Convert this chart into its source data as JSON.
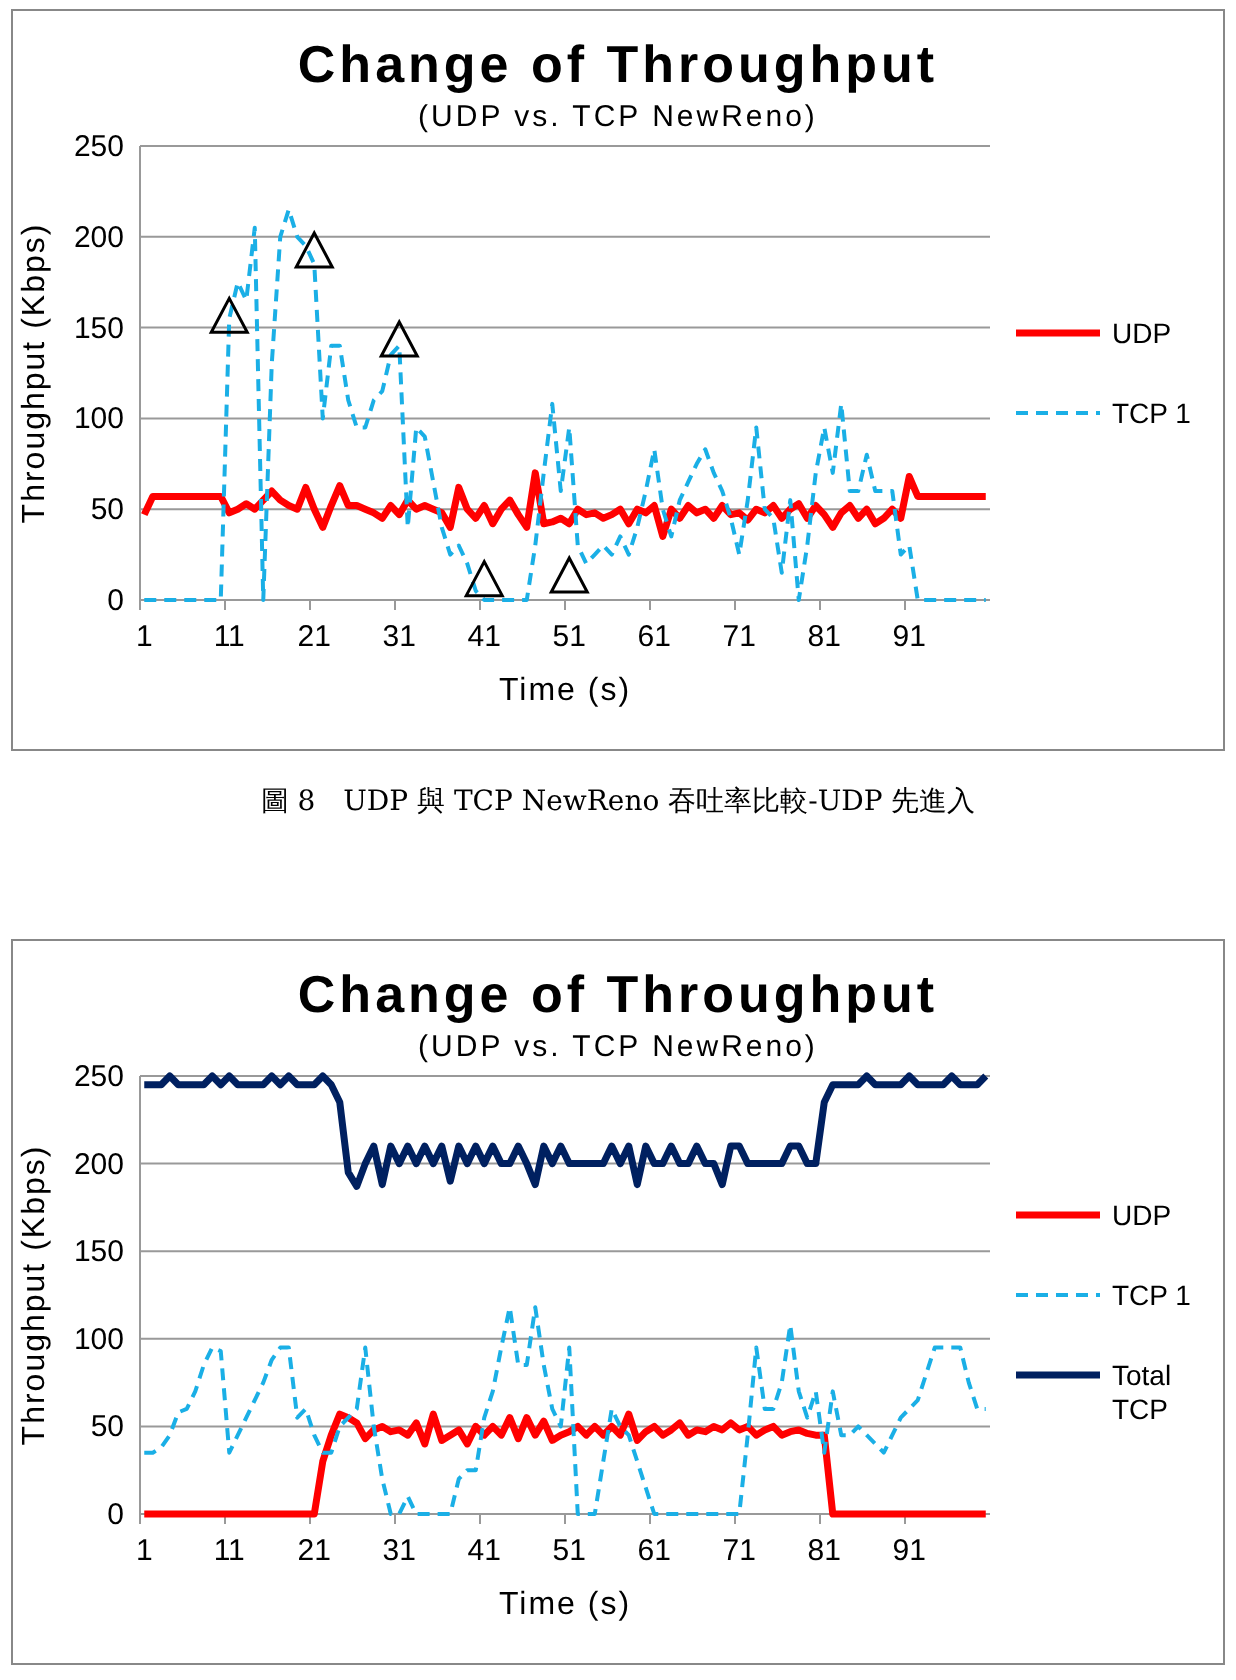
{
  "chart_data": [
    {
      "type": "line",
      "title": "Change of Throughput",
      "subtitle": "(UDP vs. TCP NewReno)",
      "xlabel": "Time (s)",
      "ylabel": "Throughput (Kbps)",
      "categories": [
        "1",
        null,
        null,
        null,
        null,
        null,
        null,
        null,
        null,
        null,
        "11",
        null,
        null,
        null,
        null,
        null,
        null,
        null,
        null,
        null,
        "21",
        null,
        null,
        null,
        null,
        null,
        null,
        null,
        null,
        null,
        "31",
        null,
        null,
        null,
        null,
        null,
        null,
        null,
        null,
        null,
        "41",
        null,
        null,
        null,
        null,
        null,
        null,
        null,
        null,
        null,
        "51",
        null,
        null,
        null,
        null,
        null,
        null,
        null,
        null,
        null,
        "61",
        null,
        null,
        null,
        null,
        null,
        null,
        null,
        null,
        null,
        "71",
        null,
        null,
        null,
        null,
        null,
        null,
        null,
        null,
        null,
        "81",
        null,
        null,
        null,
        null,
        null,
        null,
        null,
        null,
        null,
        "91",
        null,
        null,
        null,
        null,
        null,
        null,
        null,
        null,
        null
      ],
      "ylim": [
        0,
        250
      ],
      "yticks": [
        0,
        50,
        100,
        150,
        200,
        250
      ],
      "grid": "y",
      "legend": "right",
      "marker": "none",
      "series": [
        {
          "name": "UDP",
          "color": "#ff0000",
          "line_style": "solid",
          "values": [
            47,
            57,
            57,
            57,
            57,
            57,
            57,
            57,
            57,
            57,
            48,
            50,
            53,
            50,
            55,
            60,
            55,
            52,
            50,
            62,
            50,
            40,
            52,
            63,
            52,
            52,
            50,
            48,
            45,
            52,
            47,
            55,
            50,
            52,
            50,
            48,
            40,
            62,
            50,
            45,
            52,
            42,
            50,
            55,
            47,
            40,
            70,
            42,
            43,
            45,
            42,
            50,
            47,
            48,
            45,
            47,
            50,
            42,
            50,
            48,
            52,
            35,
            50,
            45,
            52,
            48,
            50,
            45,
            52,
            47,
            48,
            44,
            50,
            48,
            52,
            45,
            50,
            53,
            45,
            52,
            47,
            40,
            48,
            52,
            45,
            50,
            42,
            45,
            50,
            45,
            68,
            57,
            57,
            57,
            57,
            57,
            57,
            57,
            57,
            57
          ]
        },
        {
          "name": "TCP 1",
          "color": "#1aafe6",
          "line_style": "dashed",
          "values": [
            0,
            0,
            0,
            0,
            0,
            0,
            0,
            0,
            0,
            0,
            155,
            175,
            165,
            205,
            0,
            130,
            200,
            215,
            200,
            195,
            185,
            100,
            140,
            140,
            110,
            95,
            95,
            110,
            115,
            135,
            140,
            40,
            95,
            90,
            65,
            40,
            25,
            30,
            20,
            5,
            0,
            0,
            0,
            0,
            0,
            0,
            30,
            70,
            108,
            60,
            95,
            30,
            20,
            25,
            30,
            25,
            35,
            25,
            40,
            60,
            83,
            50,
            35,
            55,
            65,
            75,
            83,
            70,
            60,
            45,
            25,
            55,
            95,
            50,
            45,
            15,
            55,
            0,
            30,
            70,
            95,
            70,
            108,
            60,
            60,
            80,
            60,
            60,
            60,
            25,
            30,
            0,
            0,
            0,
            0,
            0,
            0,
            0,
            0,
            0
          ]
        },
        {
          "type": "scatter",
          "marker": "triangle",
          "color": "#000000",
          "x": [
            "11",
            "21",
            "31",
            "41",
            "51"
          ],
          "values": [
            154,
            190,
            141,
            9,
            11
          ]
        }
      ],
      "annotations": [
        "圖 8　UDP 與 TCP NewReno 吞吐率比較-UDP 先進入"
      ]
    },
    {
      "type": "line",
      "title": "Change of Throughput",
      "subtitle": "(UDP vs. TCP NewReno)",
      "xlabel": "Time (s)",
      "ylabel": "Throughput (Kbps)",
      "categories": [
        "1",
        null,
        null,
        null,
        null,
        null,
        null,
        null,
        null,
        null,
        "11",
        null,
        null,
        null,
        null,
        null,
        null,
        null,
        null,
        null,
        "21",
        null,
        null,
        null,
        null,
        null,
        null,
        null,
        null,
        null,
        "31",
        null,
        null,
        null,
        null,
        null,
        null,
        null,
        null,
        null,
        "41",
        null,
        null,
        null,
        null,
        null,
        null,
        null,
        null,
        null,
        "51",
        null,
        null,
        null,
        null,
        null,
        null,
        null,
        null,
        null,
        "61",
        null,
        null,
        null,
        null,
        null,
        null,
        null,
        null,
        null,
        "71",
        null,
        null,
        null,
        null,
        null,
        null,
        null,
        null,
        null,
        "81",
        null,
        null,
        null,
        null,
        null,
        null,
        null,
        null,
        null,
        "91",
        null,
        null,
        null,
        null,
        null,
        null,
        null,
        null,
        null
      ],
      "ylim": [
        0,
        250
      ],
      "yticks": [
        0,
        50,
        100,
        150,
        200,
        250
      ],
      "grid": "y",
      "legend": "right",
      "marker": "none",
      "series": [
        {
          "name": "UDP",
          "color": "#ff0000",
          "line_style": "solid",
          "values": [
            0,
            0,
            0,
            0,
            0,
            0,
            0,
            0,
            0,
            0,
            0,
            0,
            0,
            0,
            0,
            0,
            0,
            0,
            0,
            0,
            0,
            30,
            45,
            57,
            55,
            52,
            43,
            48,
            50,
            47,
            48,
            45,
            52,
            40,
            57,
            42,
            45,
            48,
            40,
            50,
            45,
            50,
            45,
            55,
            43,
            55,
            45,
            53,
            42,
            45,
            47,
            50,
            45,
            50,
            45,
            50,
            45,
            57,
            42,
            47,
            50,
            45,
            48,
            52,
            45,
            48,
            47,
            50,
            48,
            52,
            48,
            50,
            45,
            48,
            50,
            45,
            47,
            48,
            46,
            45,
            45,
            0,
            0,
            0,
            0,
            0,
            0,
            0,
            0,
            0,
            0,
            0,
            0,
            0,
            0,
            0,
            0,
            0,
            0,
            0
          ]
        },
        {
          "name": "TCP 1",
          "color": "#1aafe6",
          "line_style": "dashed",
          "values": [
            35,
            35,
            38,
            45,
            58,
            60,
            70,
            85,
            95,
            93,
            35,
            45,
            55,
            65,
            75,
            88,
            95,
            95,
            55,
            60,
            45,
            35,
            35,
            50,
            55,
            60,
            95,
            50,
            20,
            0,
            0,
            10,
            0,
            0,
            0,
            0,
            0,
            20,
            25,
            25,
            55,
            70,
            95,
            118,
            85,
            85,
            118,
            85,
            60,
            50,
            95,
            0,
            0,
            0,
            30,
            60,
            50,
            45,
            30,
            15,
            0,
            0,
            0,
            0,
            0,
            0,
            0,
            0,
            0,
            0,
            0,
            45,
            95,
            60,
            60,
            75,
            108,
            70,
            55,
            70,
            35,
            70,
            45,
            45,
            50,
            45,
            40,
            35,
            45,
            55,
            60,
            65,
            80,
            95,
            95,
            95,
            95,
            75,
            60,
            60
          ]
        },
        {
          "name": "Total TCP",
          "color": "#002060",
          "line_style": "solid",
          "values": [
            245,
            245,
            245,
            250,
            245,
            245,
            245,
            245,
            250,
            245,
            250,
            245,
            245,
            245,
            245,
            250,
            245,
            250,
            245,
            245,
            245,
            250,
            245,
            235,
            195,
            187,
            200,
            210,
            188,
            210,
            200,
            210,
            200,
            210,
            200,
            210,
            190,
            210,
            200,
            210,
            200,
            210,
            200,
            200,
            210,
            200,
            188,
            210,
            200,
            210,
            200,
            200,
            200,
            200,
            200,
            210,
            200,
            210,
            188,
            210,
            200,
            200,
            210,
            200,
            200,
            210,
            200,
            200,
            188,
            210,
            210,
            200,
            200,
            200,
            200,
            200,
            210,
            210,
            200,
            200,
            235,
            245,
            245,
            245,
            245,
            250,
            245,
            245,
            245,
            245,
            250,
            245,
            245,
            245,
            245,
            250,
            245,
            245,
            245,
            250
          ]
        }
      ]
    }
  ]
}
